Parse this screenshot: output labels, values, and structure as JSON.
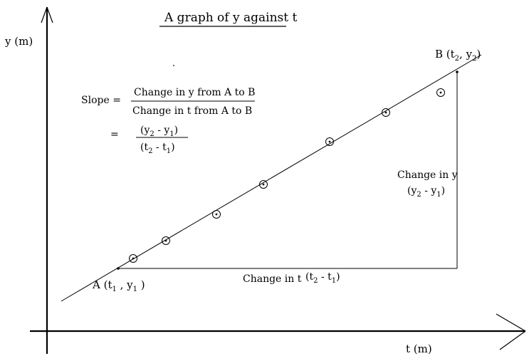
{
  "diagram": {
    "title": "A graph of y against t",
    "y_axis_label": "y (m)",
    "x_axis_label": "t (m)",
    "point_a": {
      "name": "A",
      "label_parts": [
        "A (t",
        "1",
        " , y",
        "1",
        " )"
      ]
    },
    "point_b": {
      "name": "B",
      "label_parts": [
        "B (t",
        "2",
        ", y",
        "2",
        ")"
      ]
    },
    "slope_formula": {
      "slope_label": "Slope =",
      "numerator": "Change in y from A to B",
      "denominator": "Change in t from A to B",
      "equals": "=",
      "num2_parts": [
        "(y",
        "2",
        " - y",
        "1",
        ")"
      ],
      "den2_parts": [
        "(t",
        "2",
        " - t",
        "1",
        ")"
      ]
    },
    "change_in_y": {
      "text": "Change in y",
      "expr_parts": [
        "(y",
        "2",
        " - y",
        "1",
        ")"
      ]
    },
    "change_in_t": {
      "text": "Change in t",
      "expr_parts": [
        "(t",
        "2",
        " - t",
        "1",
        ")"
      ]
    }
  }
}
